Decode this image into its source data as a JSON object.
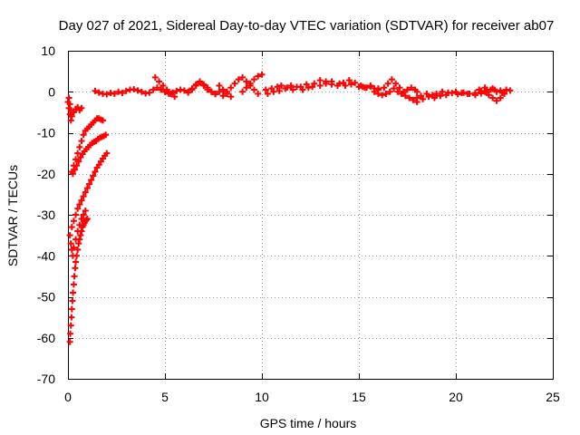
{
  "chart_data": {
    "type": "scatter",
    "title": "Day 027 of 2021, Sidereal Day-to-day VTEC variation (SDTVAR) for receiver ab07",
    "xlabel": "GPS time / hours",
    "ylabel": "SDTVAR / TECUs",
    "xlim": [
      0,
      25
    ],
    "ylim": [
      -70,
      10
    ],
    "xticks": [
      0,
      5,
      10,
      15,
      20,
      25
    ],
    "yticks": [
      10,
      0,
      -10,
      -20,
      -30,
      -40,
      -50,
      -60,
      -70
    ],
    "xtick_labels": [
      "0",
      "5",
      "10",
      "15",
      "20",
      "25"
    ],
    "ytick_labels": [
      "10",
      "0",
      "-10",
      "-20",
      "-30",
      "-40",
      "-50",
      "-60",
      "-70"
    ],
    "grid": true,
    "legend": "none",
    "marker_color": "#ff0000",
    "series": [
      {
        "points": [
          [
            0.0,
            -2.5
          ],
          [
            0.05,
            -4.0
          ],
          [
            0.1,
            -5.5
          ],
          [
            0.15,
            -7.0
          ],
          [
            0.2,
            -6.0
          ],
          [
            0.3,
            -5.0
          ],
          [
            0.4,
            -4.2
          ],
          [
            0.5,
            -3.8
          ],
          [
            0.6,
            -4.5
          ],
          [
            0.7,
            -4.0
          ],
          [
            0.05,
            -1.5
          ],
          [
            0.1,
            -3.0
          ],
          [
            0.15,
            -4.5
          ],
          [
            0.2,
            -19.5
          ],
          [
            0.3,
            -18.0
          ],
          [
            0.4,
            -16.5
          ],
          [
            0.5,
            -15.0
          ],
          [
            0.6,
            -13.5
          ],
          [
            0.7,
            -12.0
          ],
          [
            0.8,
            -10.5
          ],
          [
            0.9,
            -9.5
          ],
          [
            1.0,
            -9.0
          ],
          [
            1.1,
            -8.5
          ],
          [
            1.2,
            -8.0
          ],
          [
            1.3,
            -7.5
          ],
          [
            1.4,
            -7.0
          ],
          [
            1.5,
            -6.5
          ],
          [
            1.6,
            -6.5
          ],
          [
            1.7,
            -6.8
          ],
          [
            1.8,
            -7.0
          ],
          [
            0.25,
            -20.0
          ],
          [
            0.35,
            -19.0
          ],
          [
            0.45,
            -18.0
          ],
          [
            0.55,
            -17.0
          ],
          [
            0.65,
            -16.0
          ],
          [
            0.75,
            -15.2
          ],
          [
            0.85,
            -14.5
          ],
          [
            0.95,
            -14.0
          ],
          [
            1.05,
            -13.5
          ],
          [
            1.15,
            -13.0
          ],
          [
            1.25,
            -12.5
          ],
          [
            1.35,
            -12.2
          ],
          [
            1.45,
            -12.0
          ],
          [
            1.55,
            -11.5
          ],
          [
            1.65,
            -11.2
          ],
          [
            1.75,
            -11.0
          ],
          [
            1.85,
            -10.8
          ],
          [
            1.95,
            -10.5
          ],
          [
            0.1,
            -35.0
          ],
          [
            0.2,
            -33.0
          ],
          [
            0.3,
            -31.5
          ],
          [
            0.4,
            -30.0
          ],
          [
            0.5,
            -28.5
          ],
          [
            0.6,
            -27.5
          ],
          [
            0.7,
            -26.5
          ],
          [
            0.8,
            -25.5
          ],
          [
            0.9,
            -24.5
          ],
          [
            1.0,
            -23.5
          ],
          [
            1.1,
            -22.5
          ],
          [
            1.2,
            -21.5
          ],
          [
            1.3,
            -20.5
          ],
          [
            1.4,
            -19.5
          ],
          [
            1.5,
            -18.5
          ],
          [
            1.6,
            -17.8
          ],
          [
            1.7,
            -17.0
          ],
          [
            1.8,
            -16.3
          ],
          [
            1.9,
            -15.6
          ],
          [
            2.0,
            -15.0
          ],
          [
            0.15,
            -37.0
          ],
          [
            0.2,
            -38.5
          ],
          [
            0.25,
            -40.0
          ],
          [
            0.3,
            -38.0
          ],
          [
            0.4,
            -36.0
          ],
          [
            0.5,
            -34.0
          ],
          [
            0.6,
            -32.5
          ],
          [
            0.7,
            -31.0
          ],
          [
            0.8,
            -30.0
          ],
          [
            0.9,
            -29.0
          ],
          [
            0.1,
            -61.0
          ],
          [
            0.12,
            -59.0
          ],
          [
            0.15,
            -57.0
          ],
          [
            0.18,
            -55.0
          ],
          [
            0.2,
            -53.0
          ],
          [
            0.23,
            -51.0
          ],
          [
            0.26,
            -49.0
          ],
          [
            0.3,
            -47.0
          ],
          [
            0.33,
            -45.0
          ],
          [
            0.37,
            -43.0
          ],
          [
            0.4,
            -41.5
          ],
          [
            0.45,
            -40.0
          ],
          [
            0.5,
            -38.5
          ],
          [
            0.55,
            -37.0
          ],
          [
            0.6,
            -36.0
          ],
          [
            0.65,
            -35.0
          ],
          [
            0.7,
            -34.0
          ],
          [
            0.75,
            -33.0
          ],
          [
            0.8,
            -32.5
          ],
          [
            0.85,
            -32.0
          ],
          [
            0.9,
            -31.5
          ],
          [
            0.95,
            -31.2
          ],
          [
            1.0,
            -31.0
          ],
          [
            1.4,
            0.2
          ],
          [
            1.6,
            -0.2
          ],
          [
            1.8,
            -0.5
          ],
          [
            2.0,
            -0.6
          ],
          [
            2.2,
            -0.3
          ],
          [
            2.4,
            -0.5
          ],
          [
            2.6,
            0.0
          ],
          [
            2.8,
            -0.3
          ],
          [
            3.0,
            0.2
          ],
          [
            3.2,
            0.5
          ],
          [
            3.4,
            0.6
          ],
          [
            3.6,
            0.3
          ],
          [
            3.8,
            0.0
          ],
          [
            4.0,
            -0.4
          ],
          [
            4.2,
            -0.2
          ],
          [
            4.4,
            0.5
          ],
          [
            4.6,
            1.0
          ],
          [
            4.8,
            0.5
          ],
          [
            5.0,
            0.0
          ],
          [
            5.2,
            -0.5
          ],
          [
            5.4,
            -0.2
          ],
          [
            5.6,
            0.2
          ],
          [
            5.8,
            0.5
          ],
          [
            6.0,
            0.3
          ],
          [
            6.2,
            -0.2
          ],
          [
            6.4,
            0.5
          ],
          [
            6.6,
            1.5
          ],
          [
            6.8,
            2.3
          ],
          [
            7.0,
            1.5
          ],
          [
            7.2,
            0.5
          ],
          [
            7.4,
            0.0
          ],
          [
            7.6,
            -0.5
          ],
          [
            7.8,
            0.0
          ],
          [
            8.0,
            0.5
          ],
          [
            4.5,
            3.5
          ],
          [
            4.7,
            2.5
          ],
          [
            4.9,
            1.5
          ],
          [
            5.1,
            0.5
          ],
          [
            5.3,
            -0.5
          ],
          [
            5.5,
            -1.2
          ],
          [
            6.2,
            0.0
          ],
          [
            6.4,
            0.8
          ],
          [
            6.6,
            1.8
          ],
          [
            6.8,
            2.5
          ],
          [
            7.0,
            1.8
          ],
          [
            7.2,
            1.0
          ],
          [
            7.4,
            0.0
          ],
          [
            7.6,
            -0.6
          ],
          [
            8.0,
            -1.0
          ],
          [
            8.2,
            0.0
          ],
          [
            8.4,
            1.0
          ],
          [
            8.6,
            2.0
          ],
          [
            8.8,
            3.0
          ],
          [
            9.0,
            3.5
          ],
          [
            9.2,
            2.5
          ],
          [
            9.4,
            1.5
          ],
          [
            9.6,
            0.5
          ],
          [
            9.8,
            -0.5
          ],
          [
            7.8,
            1.5
          ],
          [
            8.0,
            0.5
          ],
          [
            8.2,
            -0.5
          ],
          [
            8.4,
            -1.2
          ],
          [
            9.0,
            0.0
          ],
          [
            9.2,
            1.0
          ],
          [
            9.4,
            2.0
          ],
          [
            9.6,
            3.0
          ],
          [
            9.8,
            3.8
          ],
          [
            10.0,
            4.2
          ],
          [
            10.2,
            0.5
          ],
          [
            10.5,
            0.8
          ],
          [
            10.8,
            1.2
          ],
          [
            11.0,
            1.5
          ],
          [
            11.3,
            1.0
          ],
          [
            11.6,
            0.5
          ],
          [
            12.0,
            1.2
          ],
          [
            12.3,
            1.8
          ],
          [
            12.6,
            1.2
          ],
          [
            13.0,
            1.5
          ],
          [
            13.3,
            2.0
          ],
          [
            13.6,
            2.5
          ],
          [
            14.0,
            2.0
          ],
          [
            14.3,
            1.5
          ],
          [
            14.6,
            1.8
          ],
          [
            15.0,
            1.2
          ],
          [
            15.3,
            1.0
          ],
          [
            15.6,
            1.3
          ],
          [
            16.0,
            0.8
          ],
          [
            10.3,
            -0.5
          ],
          [
            10.6,
            0.0
          ],
          [
            10.9,
            0.2
          ],
          [
            11.2,
            0.8
          ],
          [
            11.5,
            1.5
          ],
          [
            11.8,
            1.2
          ],
          [
            12.1,
            0.5
          ],
          [
            12.4,
            1.0
          ],
          [
            12.7,
            2.0
          ],
          [
            13.0,
            2.8
          ],
          [
            13.3,
            2.5
          ],
          [
            13.6,
            1.8
          ],
          [
            13.9,
            1.5
          ],
          [
            14.2,
            2.2
          ],
          [
            14.5,
            2.8
          ],
          [
            14.8,
            2.2
          ],
          [
            15.1,
            1.5
          ],
          [
            15.2,
            1.2
          ],
          [
            15.4,
            1.0
          ],
          [
            15.6,
            1.5
          ],
          [
            15.8,
            0.8
          ],
          [
            16.0,
            0.5
          ],
          [
            15.8,
            0.0
          ],
          [
            16.0,
            -0.5
          ],
          [
            16.2,
            -0.8
          ],
          [
            16.4,
            -0.5
          ],
          [
            16.6,
            0.0
          ],
          [
            16.3,
            1.0
          ],
          [
            16.5,
            2.0
          ],
          [
            16.7,
            3.0
          ],
          [
            16.9,
            2.0
          ],
          [
            17.1,
            1.0
          ],
          [
            17.3,
            0.0
          ],
          [
            16.8,
            0.8
          ],
          [
            17.0,
            0.0
          ],
          [
            17.2,
            -0.5
          ],
          [
            17.4,
            -1.0
          ],
          [
            17.6,
            -1.5
          ],
          [
            17.8,
            -2.0
          ],
          [
            18.0,
            -2.5
          ],
          [
            17.5,
            0.5
          ],
          [
            17.7,
            1.0
          ],
          [
            17.9,
            0.5
          ],
          [
            18.0,
            0.0
          ],
          [
            18.2,
            -1.0
          ],
          [
            18.5,
            -0.5
          ],
          [
            18.8,
            -0.8
          ],
          [
            19.0,
            -0.5
          ],
          [
            19.3,
            0.0
          ],
          [
            19.6,
            -0.2
          ],
          [
            20.0,
            0.0
          ],
          [
            20.3,
            -0.3
          ],
          [
            20.6,
            -0.5
          ],
          [
            21.0,
            -0.8
          ],
          [
            21.3,
            -0.4
          ],
          [
            21.6,
            0.0
          ],
          [
            22.0,
            0.5
          ],
          [
            22.3,
            0.3
          ],
          [
            22.6,
            0.5
          ],
          [
            22.8,
            0.3
          ],
          [
            18.0,
            -1.5
          ],
          [
            18.3,
            -1.8
          ],
          [
            18.6,
            -1.2
          ],
          [
            18.9,
            -1.5
          ],
          [
            19.2,
            -1.0
          ],
          [
            19.5,
            -0.8
          ],
          [
            19.8,
            -0.3
          ],
          [
            20.1,
            -0.6
          ],
          [
            20.4,
            -0.2
          ],
          [
            20.7,
            -0.5
          ],
          [
            21.0,
            -0.3
          ],
          [
            21.3,
            0.2
          ],
          [
            21.6,
            0.5
          ],
          [
            21.9,
            0.8
          ],
          [
            21.5,
            0.0
          ],
          [
            21.7,
            -0.8
          ],
          [
            21.9,
            -1.5
          ],
          [
            22.1,
            -2.2
          ],
          [
            22.3,
            -1.5
          ],
          [
            22.5,
            -0.5
          ],
          [
            21.2,
            0.5
          ],
          [
            21.5,
            1.0
          ],
          [
            21.8,
            0.5
          ],
          [
            22.1,
            0.0
          ],
          [
            22.4,
            -0.3
          ]
        ]
      }
    ]
  }
}
